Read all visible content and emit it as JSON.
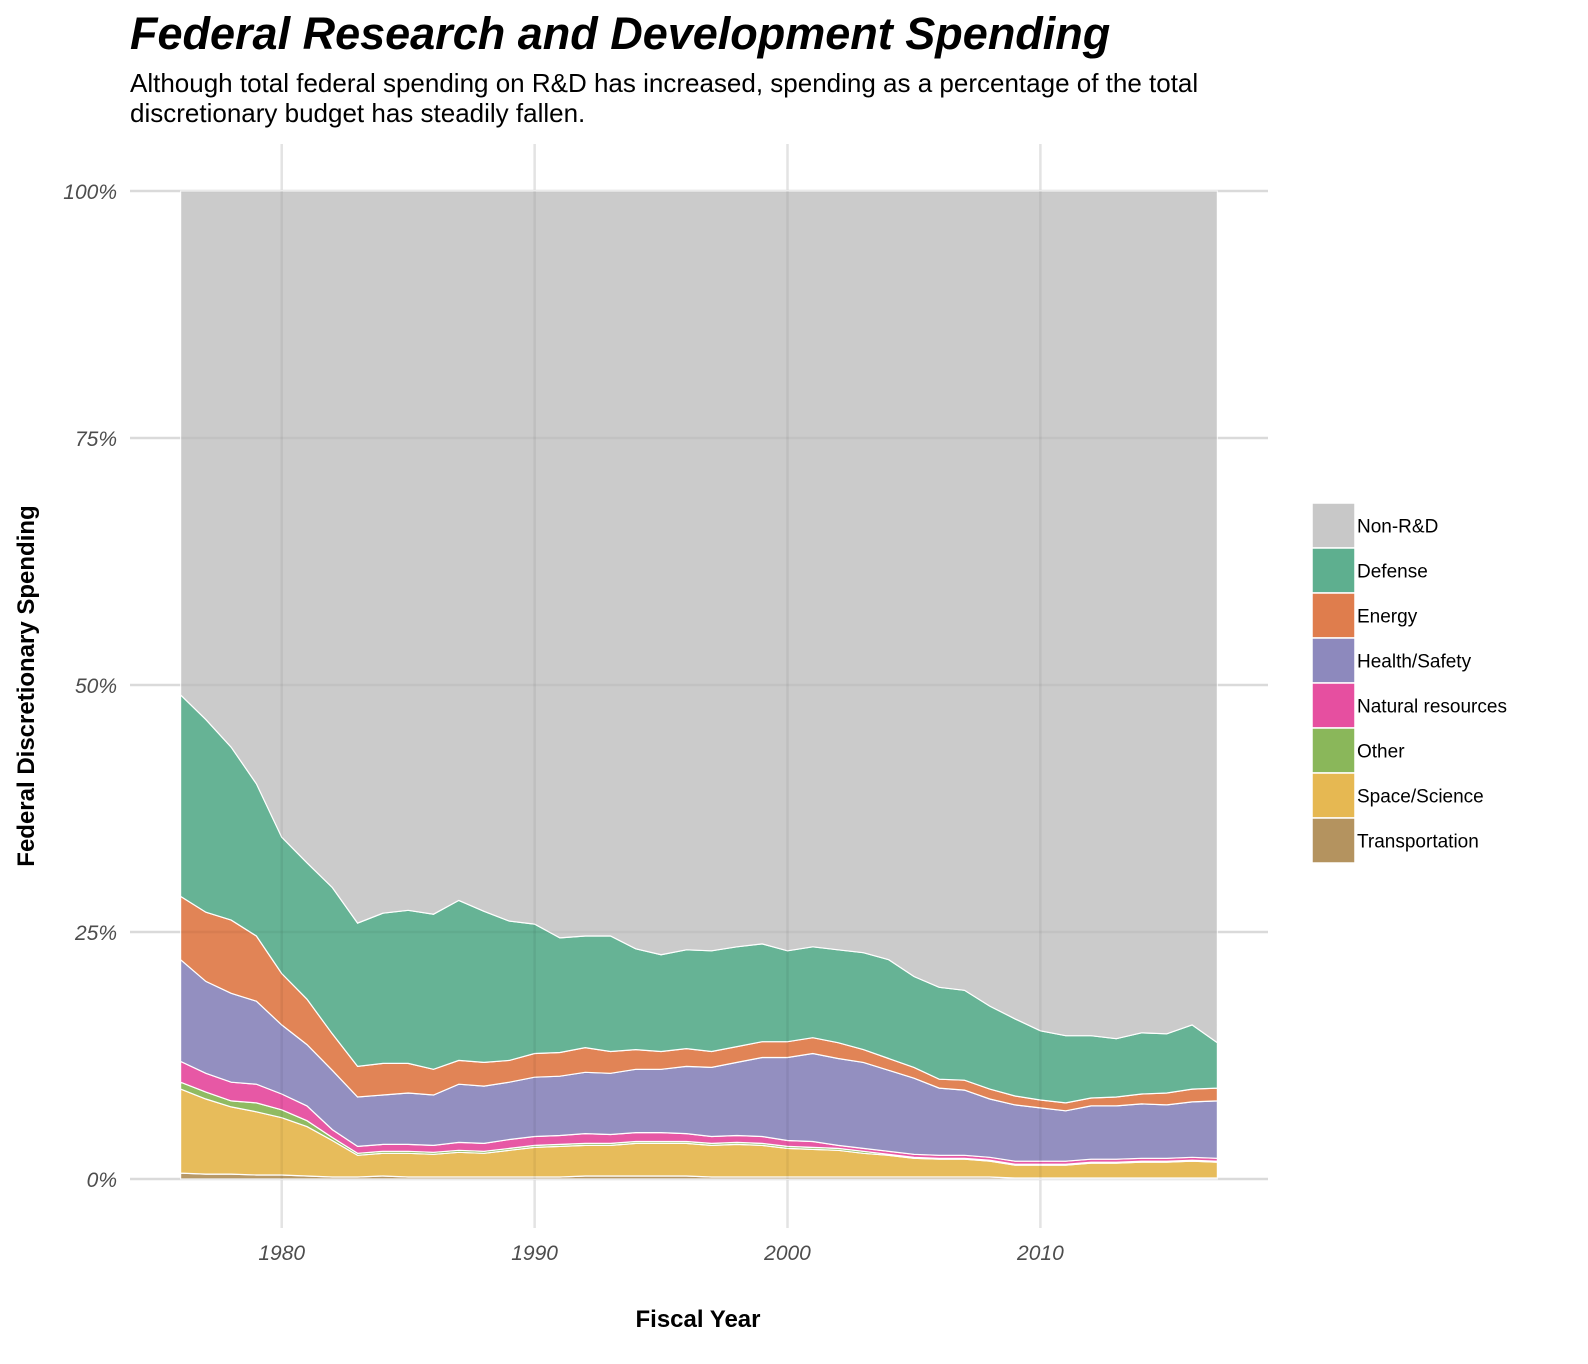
{
  "chart_data": {
    "type": "area",
    "title": "Federal Research and Development Spending",
    "subtitle": "Although total federal spending on R&D has increased, spending as a percentage of the total discretionary budget has steadily fallen.",
    "xlabel": "Fiscal Year",
    "ylabel": "Federal Discretionary Spending",
    "stacked": true,
    "xlim": [
      1974,
      2019
    ],
    "ylim": [
      0,
      100
    ],
    "x_ticks": [
      1980,
      1990,
      2000,
      2010
    ],
    "x_tick_labels": [
      "1980",
      "1990",
      "2000",
      "2010"
    ],
    "y_ticks": [
      0,
      25,
      50,
      75,
      100
    ],
    "y_tick_labels": [
      "0%",
      "25%",
      "50%",
      "75%",
      "100%"
    ],
    "grid": true,
    "legend_position": "right",
    "x": [
      1976,
      1977,
      1978,
      1979,
      1980,
      1981,
      1982,
      1983,
      1984,
      1985,
      1986,
      1987,
      1988,
      1989,
      1990,
      1991,
      1992,
      1993,
      1994,
      1995,
      1996,
      1997,
      1998,
      1999,
      2000,
      2001,
      2002,
      2003,
      2004,
      2005,
      2006,
      2007,
      2008,
      2009,
      2010,
      2011,
      2012,
      2013,
      2014,
      2015,
      2016,
      2017
    ],
    "series": [
      {
        "name": "Transportation",
        "color": "#b4935f",
        "values": [
          0.6,
          0.5,
          0.5,
          0.4,
          0.4,
          0.3,
          0.2,
          0.2,
          0.3,
          0.2,
          0.2,
          0.2,
          0.2,
          0.2,
          0.2,
          0.2,
          0.3,
          0.3,
          0.3,
          0.3,
          0.3,
          0.2,
          0.2,
          0.2,
          0.2,
          0.2,
          0.2,
          0.2,
          0.2,
          0.2,
          0.2,
          0.2,
          0.2,
          0.1,
          0.1,
          0.1,
          0.1,
          0.1,
          0.1,
          0.1,
          0.1,
          0.1
        ]
      },
      {
        "name": "Space/Science",
        "color": "#e6b852",
        "values": [
          8.5,
          7.6,
          6.8,
          6.4,
          5.8,
          5.0,
          3.7,
          2.2,
          2.3,
          2.4,
          2.3,
          2.5,
          2.4,
          2.7,
          3.0,
          3.1,
          3.1,
          3.1,
          3.3,
          3.3,
          3.3,
          3.2,
          3.3,
          3.2,
          2.9,
          2.8,
          2.7,
          2.4,
          2.2,
          1.9,
          1.8,
          1.8,
          1.6,
          1.3,
          1.3,
          1.3,
          1.5,
          1.5,
          1.6,
          1.6,
          1.7,
          1.6
        ]
      },
      {
        "name": "Other",
        "color": "#8ab75a",
        "values": [
          0.7,
          0.7,
          0.6,
          0.9,
          0.8,
          0.6,
          0.3,
          0.2,
          0.2,
          0.2,
          0.2,
          0.2,
          0.2,
          0.2,
          0.2,
          0.2,
          0.2,
          0.2,
          0.2,
          0.2,
          0.2,
          0.2,
          0.2,
          0.2,
          0.2,
          0.2,
          0.2,
          0.2,
          0.1,
          0.1,
          0.1,
          0.1,
          0.1,
          0.1,
          0.1,
          0.1,
          0.1,
          0.1,
          0.1,
          0.1,
          0.1,
          0.1
        ]
      },
      {
        "name": "Natural resources",
        "color": "#e64fa0",
        "values": [
          2.1,
          1.9,
          1.9,
          1.9,
          1.6,
          1.5,
          0.8,
          0.7,
          0.7,
          0.7,
          0.7,
          0.8,
          0.8,
          0.9,
          0.9,
          0.9,
          1.0,
          0.9,
          0.9,
          0.9,
          0.8,
          0.7,
          0.7,
          0.7,
          0.6,
          0.6,
          0.3,
          0.3,
          0.3,
          0.3,
          0.3,
          0.3,
          0.3,
          0.3,
          0.3,
          0.3,
          0.3,
          0.3,
          0.3,
          0.3,
          0.3,
          0.3
        ]
      },
      {
        "name": "Health/Safety",
        "color": "#8d89bd",
        "values": [
          10.3,
          9.3,
          9.0,
          8.4,
          7.0,
          6.2,
          6.0,
          5.0,
          5.0,
          5.2,
          5.1,
          5.9,
          5.8,
          5.8,
          6.0,
          6.0,
          6.2,
          6.2,
          6.4,
          6.4,
          6.8,
          7.0,
          7.4,
          8.0,
          8.4,
          8.9,
          8.8,
          8.7,
          8.2,
          7.7,
          6.8,
          6.6,
          5.9,
          5.7,
          5.4,
          5.1,
          5.4,
          5.4,
          5.5,
          5.4,
          5.6,
          5.8
        ]
      },
      {
        "name": "Energy",
        "color": "#df7d4d",
        "values": [
          6.4,
          7.0,
          7.4,
          6.6,
          5.2,
          4.6,
          3.7,
          3.1,
          3.2,
          3.0,
          2.6,
          2.4,
          2.4,
          2.2,
          2.4,
          2.4,
          2.5,
          2.2,
          2.0,
          1.8,
          1.8,
          1.6,
          1.6,
          1.6,
          1.6,
          1.6,
          1.6,
          1.3,
          1.2,
          1.1,
          0.9,
          1.0,
          1.0,
          0.9,
          0.8,
          0.8,
          0.8,
          0.9,
          1.0,
          1.2,
          1.3,
          1.3
        ]
      },
      {
        "name": "Defense",
        "color": "#5eaf8f",
        "values": [
          20.4,
          19.5,
          17.5,
          15.4,
          13.8,
          13.8,
          14.8,
          14.5,
          15.2,
          15.5,
          15.7,
          16.2,
          15.3,
          14.1,
          13.1,
          11.6,
          11.3,
          11.7,
          10.2,
          9.8,
          10.0,
          10.2,
          10.1,
          9.9,
          9.2,
          9.2,
          9.4,
          9.8,
          10.0,
          9.2,
          9.3,
          9.1,
          8.4,
          7.8,
          7.0,
          6.8,
          6.3,
          5.9,
          6.2,
          6.0,
          6.5,
          4.6
        ]
      },
      {
        "name": "Non-R&D",
        "color": "#c8c8c8",
        "values": [
          51.0,
          53.5,
          56.3,
          60.0,
          65.4,
          68.0,
          70.5,
          74.1,
          73.1,
          72.8,
          73.2,
          71.8,
          72.9,
          73.9,
          74.2,
          75.6,
          75.4,
          75.4,
          76.7,
          77.3,
          76.8,
          76.9,
          76.5,
          76.2,
          76.9,
          76.5,
          76.8,
          77.1,
          78.0,
          79.5,
          80.6,
          80.9,
          82.5,
          83.8,
          85.0,
          85.5,
          85.5,
          85.8,
          85.2,
          85.3,
          84.4,
          86.3
        ]
      }
    ]
  }
}
